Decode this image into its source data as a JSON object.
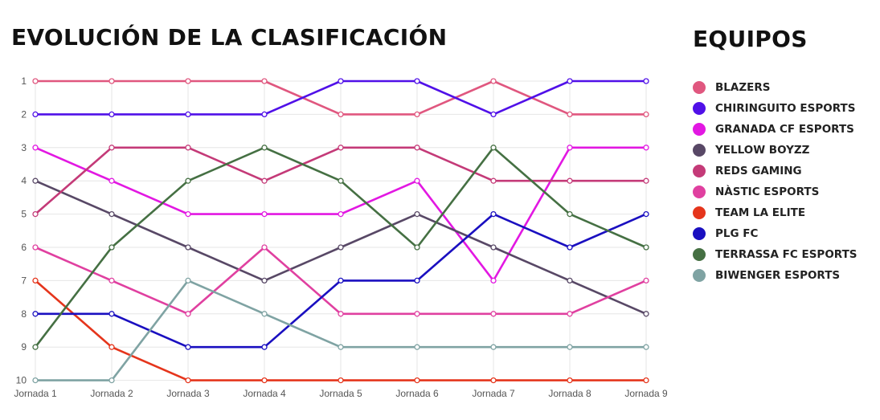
{
  "header": {
    "title": "EVOLUCIÓN DE LA CLASIFICACIÓN"
  },
  "legend": {
    "title": "EQUIPOS"
  },
  "chart_data": {
    "type": "line",
    "title": "EVOLUCIÓN DE LA CLASIFICACIÓN",
    "xlabel": "",
    "ylabel": "",
    "x": [
      "Jornada 1",
      "Jornada 2",
      "Jornada 3",
      "Jornada 4",
      "Jornada 5",
      "Jornada 6",
      "Jornada 7",
      "Jornada 8",
      "Jornada 9"
    ],
    "y_ticks": [
      "1",
      "2",
      "3",
      "4",
      "5",
      "6",
      "7",
      "8",
      "9",
      "10"
    ],
    "ylim": [
      1,
      10
    ],
    "y_inverted": true,
    "grid": true,
    "legend_position": "right",
    "series": [
      {
        "name": "BLAZERS",
        "color": "#e0577f",
        "values": [
          1,
          1,
          1,
          1,
          2,
          2,
          1,
          2,
          2
        ]
      },
      {
        "name": "CHIRINGUITO ESPORTS",
        "color": "#5010e8",
        "values": [
          2,
          2,
          2,
          2,
          1,
          1,
          2,
          1,
          1
        ]
      },
      {
        "name": "GRANADA CF ESPORTS",
        "color": "#e218e2",
        "values": [
          3,
          4,
          5,
          5,
          5,
          4,
          7,
          3,
          3
        ]
      },
      {
        "name": "YELLOW BOYZZ",
        "color": "#584866",
        "values": [
          4,
          5,
          6,
          7,
          6,
          5,
          6,
          7,
          8
        ]
      },
      {
        "name": "REDS GAMING",
        "color": "#c43a78",
        "values": [
          5,
          3,
          3,
          4,
          3,
          3,
          4,
          4,
          4
        ]
      },
      {
        "name": "NÀSTIC ESPORTS",
        "color": "#e040a0",
        "values": [
          6,
          7,
          8,
          6,
          8,
          8,
          8,
          8,
          7
        ]
      },
      {
        "name": "TEAM LA ELITE",
        "color": "#e5351c",
        "values": [
          7,
          9,
          10,
          10,
          10,
          10,
          10,
          10,
          10
        ]
      },
      {
        "name": "PLG FC",
        "color": "#1a0fc0",
        "values": [
          8,
          8,
          9,
          9,
          7,
          7,
          5,
          6,
          5
        ]
      },
      {
        "name": "TERRASSA FC ESPORTS",
        "color": "#457043",
        "values": [
          9,
          6,
          4,
          3,
          4,
          6,
          3,
          5,
          6
        ]
      },
      {
        "name": "BIWENGER ESPORTS",
        "color": "#7fa3a3",
        "values": [
          10,
          10,
          7,
          8,
          9,
          9,
          9,
          9,
          9
        ]
      }
    ]
  }
}
